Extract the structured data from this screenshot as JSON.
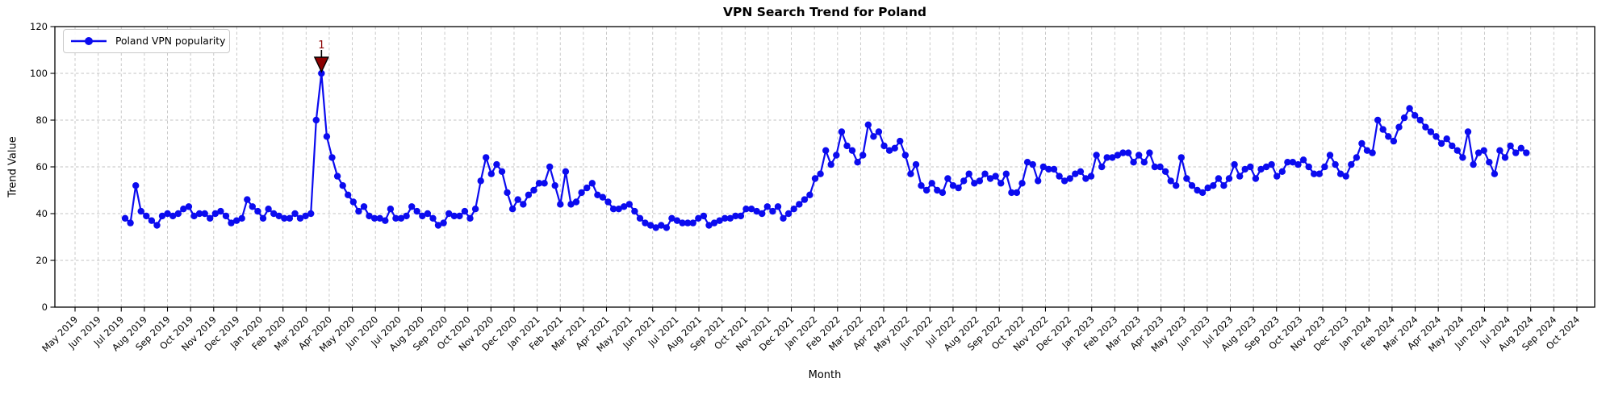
{
  "chart": {
    "title": "VPN Search Trend for Poland",
    "x_label": "Month",
    "y_label": "Trend Value",
    "legend_label": "Poland VPN popularity"
  },
  "colors": {
    "line": "#0b0bef",
    "annotation": "#8b0000",
    "grid": "#c3c3c3",
    "spine": "#000000",
    "background": "#ffffff"
  },
  "chart_data": {
    "type": "line",
    "title": "VPN Search Trend for Poland",
    "xlabel": "Month",
    "ylabel": "Trend Value",
    "ylim": [
      0,
      120
    ],
    "grid": true,
    "legend_position": "upper left",
    "y_ticks": [
      0,
      20,
      40,
      60,
      80,
      100,
      120
    ],
    "x_tick_labels": [
      "May 2019",
      "Jun 2019",
      "Jul 2019",
      "Aug 2019",
      "Sep 2019",
      "Oct 2019",
      "Nov 2019",
      "Dec 2019",
      "Jan 2020",
      "Feb 2020",
      "Mar 2020",
      "Apr 2020",
      "May 2020",
      "Jun 2020",
      "Jul 2020",
      "Aug 2020",
      "Sep 2020",
      "Oct 2020",
      "Nov 2020",
      "Dec 2020",
      "Jan 2021",
      "Feb 2021",
      "Mar 2021",
      "Apr 2021",
      "May 2021",
      "Jun 2021",
      "Jul 2021",
      "Aug 2021",
      "Sep 2021",
      "Oct 2021",
      "Nov 2021",
      "Dec 2021",
      "Jan 2022",
      "Feb 2022",
      "Mar 2022",
      "Apr 2022",
      "May 2022",
      "Jun 2022",
      "Jul 2022",
      "Aug 2022",
      "Sep 2022",
      "Oct 2022",
      "Nov 2022",
      "Dec 2022",
      "Jan 2023",
      "Feb 2023",
      "Mar 2023",
      "Apr 2023",
      "May 2023",
      "Jun 2023",
      "Jul 2023",
      "Aug 2023",
      "Sep 2023",
      "Oct 2023",
      "Nov 2023",
      "Dec 2023",
      "Jan 2024",
      "Feb 2024",
      "Mar 2024",
      "Apr 2024",
      "May 2024",
      "Jun 2024",
      "Jul 2024",
      "Aug 2024",
      "Sep 2024",
      "Oct 2024"
    ],
    "series": [
      {
        "name": "Poland VPN popularity",
        "frequency": "weekly",
        "start_date": "2019-07-07",
        "values": [
          38,
          36,
          52,
          41,
          39,
          37,
          35,
          39,
          40,
          39,
          40,
          42,
          43,
          39,
          40,
          40,
          38,
          40,
          41,
          39,
          36,
          37,
          38,
          46,
          43,
          41,
          38,
          42,
          40,
          39,
          38,
          38,
          40,
          38,
          39,
          40,
          80,
          100,
          73,
          64,
          56,
          52,
          48,
          45,
          41,
          43,
          39,
          38,
          38,
          37,
          42,
          38,
          38,
          39,
          43,
          41,
          39,
          40,
          38,
          35,
          36,
          40,
          39,
          39,
          41,
          38,
          42,
          54,
          64,
          57,
          61,
          58,
          49,
          42,
          46,
          44,
          48,
          50,
          53,
          53,
          60,
          52,
          44,
          58,
          44,
          45,
          49,
          51,
          53,
          48,
          47,
          45,
          42,
          42,
          43,
          44,
          41,
          38,
          36,
          35,
          34,
          35,
          34,
          38,
          37,
          36,
          36,
          36,
          38,
          39,
          35,
          36,
          37,
          38,
          38,
          39,
          39,
          42,
          42,
          41,
          40,
          43,
          41,
          43,
          38,
          40,
          42,
          44,
          46,
          48,
          55,
          57,
          67,
          61,
          65,
          75,
          69,
          67,
          62,
          65,
          78,
          73,
          75,
          69,
          67,
          68,
          71,
          65,
          57,
          61,
          52,
          50,
          53,
          50,
          49,
          55,
          52,
          51,
          54,
          57,
          53,
          54,
          57,
          55,
          56,
          53,
          57,
          49,
          49,
          53,
          62,
          61,
          54,
          60,
          59,
          59,
          56,
          54,
          55,
          57,
          58,
          55,
          56,
          65,
          60,
          64,
          64,
          65,
          66,
          66,
          62,
          65,
          62,
          66,
          60,
          60,
          58,
          54,
          52,
          64,
          55,
          52,
          50,
          49,
          51,
          52,
          55,
          52,
          55,
          61,
          56,
          59,
          60,
          55,
          59,
          60,
          61,
          56,
          58,
          62,
          62,
          61,
          63,
          60,
          57,
          57,
          60,
          65,
          61,
          57,
          56,
          61,
          64,
          70,
          67,
          66,
          80,
          76,
          73,
          71,
          77,
          81,
          85,
          82,
          80,
          77,
          75,
          73,
          70,
          72,
          69,
          67,
          64,
          75,
          61,
          66,
          67,
          62,
          57,
          67,
          64,
          69,
          66,
          68,
          66
        ]
      }
    ],
    "annotations": [
      {
        "text": "1",
        "series_index": 37,
        "value": 100,
        "marker": "triangle-down",
        "color": "#8b0000"
      }
    ]
  }
}
